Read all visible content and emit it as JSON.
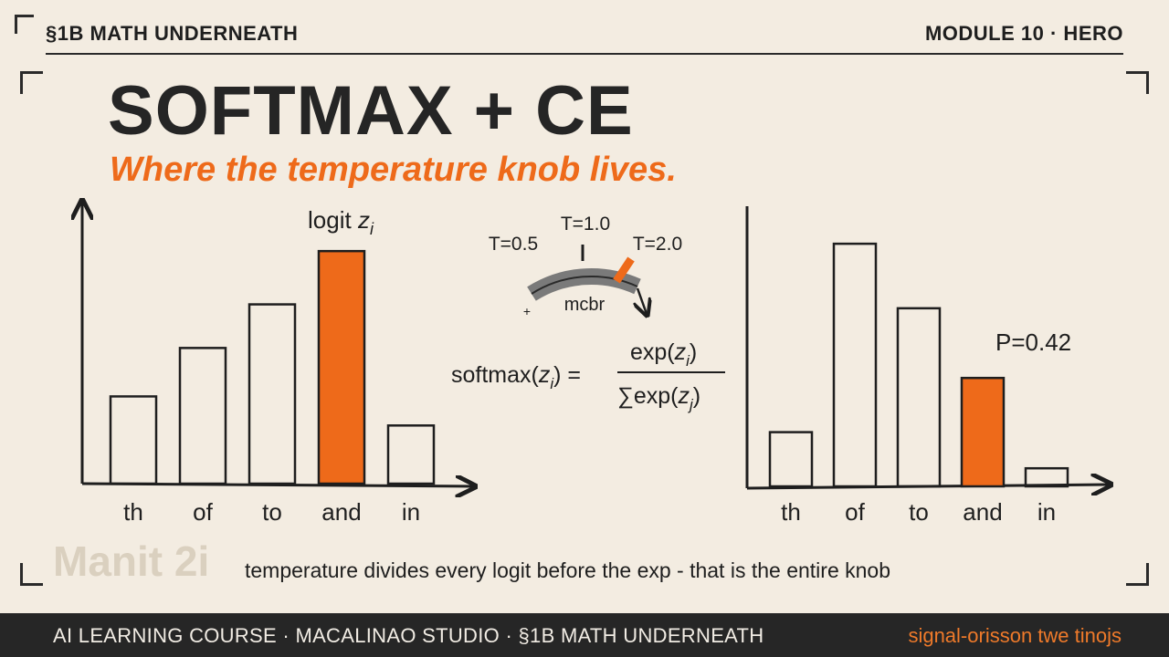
{
  "header": {
    "left_label": "§1B MATH UNDERNEATH",
    "right_label": "MODULE 10 · HERO"
  },
  "title": "SOFTMAX + CE",
  "subtitle": "Where the temperature knob lives.",
  "colors": {
    "accent": "#ee6a1a",
    "ink": "#1e1e1e",
    "paper": "#f3ece1",
    "footer": "#262626"
  },
  "chart_data": [
    {
      "type": "bar",
      "categories": [
        "th",
        "of",
        "to",
        "and",
        "in"
      ],
      "values": [
        0.36,
        0.56,
        0.74,
        0.96,
        0.24
      ],
      "highlight_index": 3,
      "annotation": {
        "prefix": "logit ",
        "symbol": "z",
        "subscript": "i"
      },
      "ylim": [
        0,
        1.1
      ]
    },
    {
      "type": "bar",
      "categories": [
        "th",
        "of",
        "to",
        "and",
        "in"
      ],
      "values": [
        0.21,
        0.94,
        0.69,
        0.42,
        0.07
      ],
      "highlight_index": 3,
      "annotation": {
        "text": "P=0.42"
      },
      "ylim": [
        0,
        1.05
      ]
    }
  ],
  "dial": {
    "labels": [
      "T=0.5",
      "T=1.0",
      "T=2.0"
    ],
    "center_text": "mcbr",
    "plus_mark": "+",
    "icon": "temperature-dial-icon"
  },
  "formula": {
    "lhs_fn": "softmax(",
    "lhs_var": "z",
    "lhs_sub": "i",
    "lhs_close": ") =",
    "num_fn": "exp(",
    "num_var": "z",
    "num_sub": "i",
    "num_close": ")",
    "den_sum": "∑",
    "den_fn": "exp(",
    "den_var": "z",
    "den_sub": "j",
    "den_close": ")"
  },
  "watermark": "Manit 2i",
  "caption": "temperature divides every logit before the exp - that is the entire knob",
  "footer": {
    "left_text": "AI LEARNING COURSE · MACALINAO STUDIO · §1B MATH UNDERNEATH",
    "right_text": "signal-orisson twe tinojs"
  }
}
